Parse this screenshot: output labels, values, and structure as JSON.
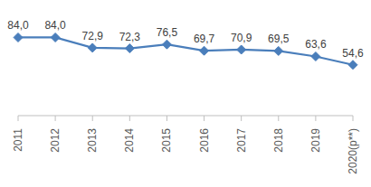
{
  "chart_data": {
    "type": "line",
    "categories": [
      "2011",
      "2012",
      "2013",
      "2014",
      "2015",
      "2016",
      "2017",
      "2018",
      "2019",
      "2020(p**)"
    ],
    "values": [
      84.0,
      84.0,
      72.9,
      72.3,
      76.5,
      69.7,
      70.9,
      69.5,
      63.6,
      54.6
    ],
    "value_labels": [
      "84,0",
      "84,0",
      "72,9",
      "72,3",
      "76,5",
      "69,7",
      "70,9",
      "69,5",
      "63,6",
      "54,6"
    ],
    "color": "#4a7ebb",
    "marker": "diamond",
    "ylim": [
      0,
      100
    ],
    "grid": false,
    "data_labels": true,
    "tick_labels": "x"
  }
}
